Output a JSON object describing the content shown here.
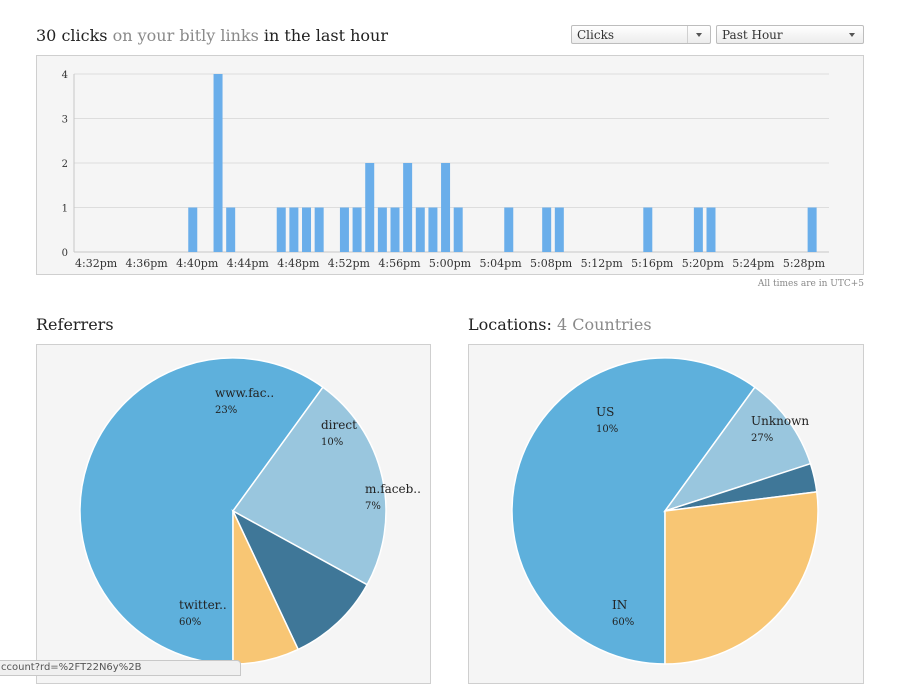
{
  "header": {
    "count_text": "30 clicks",
    "link_text": "on your bitly links",
    "suffix_text": "in the last hour"
  },
  "selects": {
    "metric": "Clicks",
    "range": "Past Hour"
  },
  "timezone_note": "All times are in UTC+5",
  "colors": {
    "bar": "#6aaeea",
    "grid": "#dddddd",
    "pie_blue": "#5eb0dc",
    "pie_lightblue": "#99c6de",
    "pie_dark": "#3f7798",
    "pie_orange": "#f8c674"
  },
  "chart_data": [
    {
      "type": "bar",
      "xlabel": "",
      "ylabel": "",
      "ylim": [
        0,
        4
      ],
      "yticks": [
        0,
        1,
        2,
        3,
        4
      ],
      "x_tick_labels": [
        "4:32pm",
        "4:36pm",
        "4:40pm",
        "4:44pm",
        "4:48pm",
        "4:52pm",
        "4:56pm",
        "5:00pm",
        "5:04pm",
        "5:08pm",
        "5:12pm",
        "5:16pm",
        "5:20pm",
        "5:24pm",
        "5:28pm"
      ],
      "start_minute": 0,
      "minutes_per_tick": 4,
      "values": [
        0,
        0,
        0,
        0,
        0,
        0,
        0,
        0,
        0,
        1,
        0,
        4,
        1,
        0,
        0,
        0,
        1,
        1,
        1,
        1,
        0,
        1,
        1,
        2,
        1,
        1,
        2,
        1,
        1,
        2,
        1,
        0,
        0,
        0,
        1,
        0,
        0,
        1,
        1,
        0,
        0,
        0,
        0,
        0,
        0,
        1,
        0,
        0,
        0,
        1,
        1,
        0,
        0,
        0,
        0,
        0,
        0,
        0,
        1,
        0
      ]
    },
    {
      "type": "pie",
      "title": "Referrers",
      "slices": [
        {
          "label": "twitter..",
          "value": 60,
          "pct_text": "60%",
          "color": "#5eb0dc"
        },
        {
          "label": "www.fac..",
          "value": 23,
          "pct_text": "23%",
          "color": "#99c6de"
        },
        {
          "label": "direct",
          "value": 10,
          "pct_text": "10%",
          "color": "#3f7798"
        },
        {
          "label": "m.faceb..",
          "value": 7,
          "pct_text": "7%",
          "color": "#f8c674"
        }
      ]
    },
    {
      "type": "pie",
      "title": "Locations:",
      "subtitle": "4 Countries",
      "slices": [
        {
          "label": "IN",
          "value": 60,
          "pct_text": "60%",
          "color": "#5eb0dc"
        },
        {
          "label": "US",
          "value": 10,
          "pct_text": "10%",
          "color": "#99c6de"
        },
        {
          "label": "",
          "value": 3,
          "pct_text": "",
          "color": "#3f7798"
        },
        {
          "label": "Unknown",
          "value": 27,
          "pct_text": "27%",
          "color": "#f8c674"
        }
      ]
    }
  ],
  "status_url": "ccount?rd=%2FT22N6y%2B"
}
